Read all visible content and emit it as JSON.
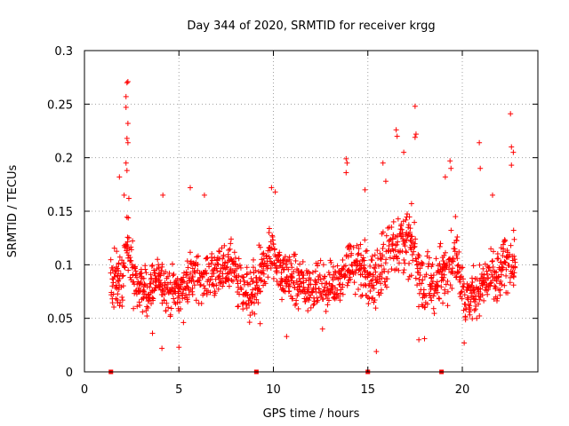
{
  "chart_data": {
    "type": "scatter",
    "title": "Day 344 of 2020, SRMTID for receiver krgg",
    "xlabel": "GPS time / hours",
    "ylabel": "SRMTID / TECUs",
    "xlim": [
      0,
      24
    ],
    "ylim": [
      0,
      0.3
    ],
    "xticks": [
      0,
      5,
      10,
      15,
      20
    ],
    "xtick_labels": [
      "0",
      "5",
      "10",
      "15",
      "20"
    ],
    "yticks": [
      0,
      0.05,
      0.1,
      0.15,
      0.2,
      0.25,
      0.3
    ],
    "ytick_labels": [
      "0",
      "0.05",
      "0.1",
      "0.15",
      "0.2",
      "0.25",
      "0.3"
    ],
    "grid": true,
    "marker": "+",
    "color": "#ff0000",
    "x_start": 1.4,
    "x_end": 22.8,
    "x_step": 0.025,
    "baseline_markers_x": [
      1.4,
      9.1,
      15.0,
      18.9
    ],
    "series": [
      {
        "name": "SRMTID",
        "trend": [
          [
            1.4,
            0.085
          ],
          [
            2.0,
            0.085
          ],
          [
            2.3,
            0.12
          ],
          [
            2.6,
            0.085
          ],
          [
            3.2,
            0.075
          ],
          [
            4.0,
            0.085
          ],
          [
            4.5,
            0.075
          ],
          [
            5.2,
            0.075
          ],
          [
            5.6,
            0.09
          ],
          [
            6.2,
            0.085
          ],
          [
            7.2,
            0.095
          ],
          [
            7.8,
            0.1
          ],
          [
            8.3,
            0.075
          ],
          [
            8.8,
            0.07
          ],
          [
            9.2,
            0.08
          ],
          [
            9.8,
            0.115
          ],
          [
            10.4,
            0.095
          ],
          [
            11.0,
            0.085
          ],
          [
            12.0,
            0.08
          ],
          [
            13.0,
            0.08
          ],
          [
            13.9,
            0.095
          ],
          [
            14.5,
            0.1
          ],
          [
            15.1,
            0.085
          ],
          [
            15.6,
            0.09
          ],
          [
            16.3,
            0.12
          ],
          [
            17.0,
            0.125
          ],
          [
            17.5,
            0.11
          ],
          [
            18.0,
            0.075
          ],
          [
            18.6,
            0.085
          ],
          [
            19.2,
            0.1
          ],
          [
            19.7,
            0.11
          ],
          [
            20.2,
            0.065
          ],
          [
            20.7,
            0.075
          ],
          [
            21.3,
            0.085
          ],
          [
            21.8,
            0.085
          ],
          [
            22.3,
            0.105
          ],
          [
            22.8,
            0.1
          ]
        ],
        "spread": [
          [
            1.4,
            0.025
          ],
          [
            2.2,
            0.035
          ],
          [
            3.0,
            0.025
          ],
          [
            6.0,
            0.025
          ],
          [
            9.8,
            0.03
          ],
          [
            13.0,
            0.022
          ],
          [
            14.0,
            0.03
          ],
          [
            16.5,
            0.035
          ],
          [
            19.5,
            0.03
          ],
          [
            21.0,
            0.025
          ],
          [
            22.8,
            0.03
          ]
        ],
        "outliers": [
          [
            2.25,
            0.27
          ],
          [
            2.3,
            0.271
          ],
          [
            2.2,
            0.257
          ],
          [
            2.2,
            0.247
          ],
          [
            2.3,
            0.232
          ],
          [
            2.25,
            0.218
          ],
          [
            2.3,
            0.214
          ],
          [
            2.2,
            0.195
          ],
          [
            2.25,
            0.188
          ],
          [
            1.85,
            0.182
          ],
          [
            2.1,
            0.165
          ],
          [
            2.35,
            0.162
          ],
          [
            13.85,
            0.199
          ],
          [
            13.9,
            0.195
          ],
          [
            13.85,
            0.186
          ],
          [
            16.5,
            0.226
          ],
          [
            16.55,
            0.22
          ],
          [
            17.5,
            0.248
          ],
          [
            17.55,
            0.222
          ],
          [
            17.5,
            0.219
          ],
          [
            16.9,
            0.205
          ],
          [
            15.8,
            0.195
          ],
          [
            19.35,
            0.197
          ],
          [
            19.4,
            0.19
          ],
          [
            20.9,
            0.214
          ],
          [
            20.95,
            0.19
          ],
          [
            22.55,
            0.241
          ],
          [
            22.6,
            0.21
          ],
          [
            22.7,
            0.205
          ],
          [
            22.6,
            0.193
          ],
          [
            15.45,
            0.019
          ],
          [
            4.1,
            0.022
          ],
          [
            5.0,
            0.023
          ],
          [
            10.7,
            0.033
          ],
          [
            17.7,
            0.03
          ],
          [
            18.0,
            0.031
          ],
          [
            20.1,
            0.027
          ],
          [
            3.6,
            0.036
          ],
          [
            9.3,
            0.045
          ],
          [
            12.6,
            0.04
          ],
          [
            4.15,
            0.165
          ],
          [
            5.6,
            0.172
          ],
          [
            6.35,
            0.165
          ],
          [
            9.9,
            0.172
          ],
          [
            10.1,
            0.168
          ],
          [
            14.85,
            0.17
          ],
          [
            15.95,
            0.178
          ],
          [
            19.1,
            0.182
          ],
          [
            21.6,
            0.165
          ]
        ]
      }
    ]
  }
}
